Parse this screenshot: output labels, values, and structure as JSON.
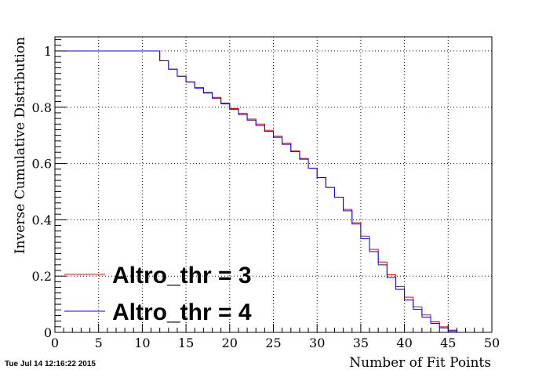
{
  "timestamp": "Tue Jul 14 12:16:22 2015",
  "chart_data": {
    "type": "line",
    "step": true,
    "xlabel": "Number of Fit Points",
    "ylabel": "Inverse Cumulative Distribution",
    "xlim": [
      0,
      50
    ],
    "ylim": [
      0,
      1.05
    ],
    "x_ticks": [
      0,
      5,
      10,
      15,
      20,
      25,
      30,
      35,
      40,
      45,
      50
    ],
    "y_ticks": [
      0,
      0.2,
      0.4,
      0.6,
      0.8,
      1
    ],
    "y_tick_labels": [
      "0",
      "0.2",
      "0.4",
      "0.6",
      "0.8",
      "1"
    ],
    "grid": true,
    "legend_position": "bottom-left",
    "bin_edges": [
      0,
      12,
      13,
      14,
      15,
      16,
      17,
      18,
      19,
      20,
      21,
      22,
      23,
      24,
      25,
      26,
      27,
      28,
      29,
      30,
      31,
      32,
      33,
      34,
      35,
      36,
      37,
      38,
      39,
      40,
      41,
      42,
      43,
      44,
      45,
      46,
      47,
      50
    ],
    "series": [
      {
        "name": "Altro_thr = 3",
        "color": "#ff0000",
        "values": [
          1.0,
          0.965,
          0.935,
          0.91,
          0.89,
          0.87,
          0.853,
          0.835,
          0.815,
          0.795,
          0.778,
          0.758,
          0.74,
          0.718,
          0.697,
          0.672,
          0.645,
          0.618,
          0.583,
          0.55,
          0.515,
          0.48,
          0.437,
          0.39,
          0.342,
          0.295,
          0.25,
          0.205,
          0.163,
          0.125,
          0.09,
          0.062,
          0.038,
          0.02,
          0.008,
          0.0,
          0.0
        ]
      },
      {
        "name": "Altro_thr = 4",
        "color": "#0000ff",
        "values": [
          1.0,
          0.965,
          0.935,
          0.91,
          0.889,
          0.868,
          0.85,
          0.832,
          0.812,
          0.792,
          0.774,
          0.754,
          0.735,
          0.714,
          0.693,
          0.668,
          0.642,
          0.615,
          0.583,
          0.55,
          0.515,
          0.48,
          0.432,
          0.385,
          0.333,
          0.287,
          0.24,
          0.195,
          0.153,
          0.115,
          0.082,
          0.054,
          0.032,
          0.016,
          0.005,
          0.0,
          0.0
        ]
      }
    ]
  }
}
